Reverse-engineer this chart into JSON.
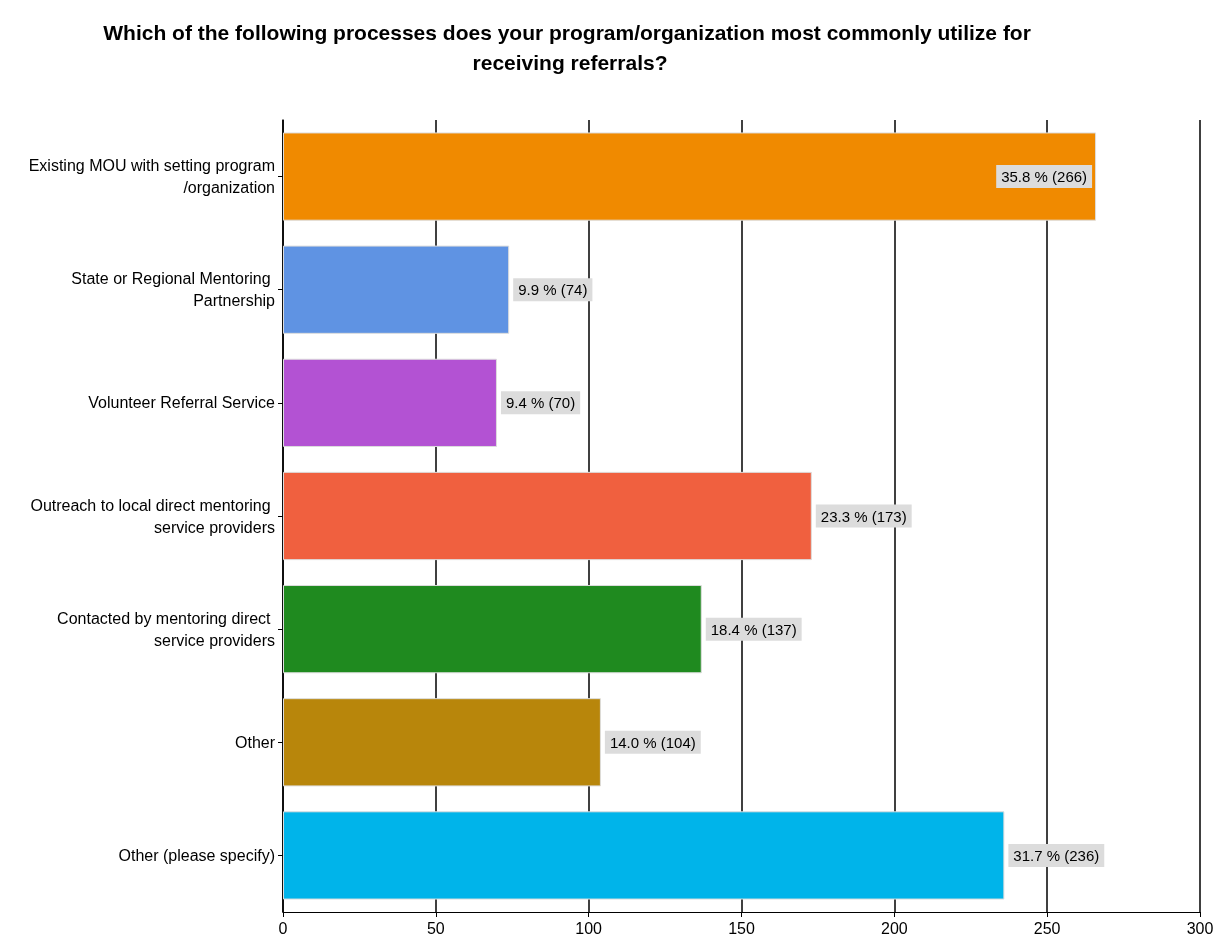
{
  "chart_data": {
    "type": "bar",
    "orientation": "horizontal",
    "title": "Which of the following processes does your program/organization most commonly utilize for receiving referrals?",
    "categories": [
      "Existing MOU with setting program/organization",
      "State or Regional Mentoring Partnership",
      "Volunteer Referral Service",
      "Outreach to local direct mentoring service providers",
      "Contacted by mentoring direct service providers",
      "Other",
      "Other (please specify)"
    ],
    "values": [
      266,
      74,
      70,
      173,
      137,
      104,
      236
    ],
    "colors": [
      "#f08a00",
      "#5f93e3",
      "#b352d3",
      "#f0603f",
      "#1f8a1f",
      "#b8860b",
      "#00b4ea"
    ],
    "value_labels": [
      "35.8 % (266)",
      "9.9 % (74)",
      "9.4 % (70)",
      "23.3 % (173)",
      "18.4 % (137)",
      "14.0 % (104)",
      "31.7 % (236)"
    ],
    "xlim": [
      0,
      300
    ],
    "xticks": [
      0,
      50,
      100,
      150,
      200,
      250,
      300
    ],
    "grid": "x"
  }
}
